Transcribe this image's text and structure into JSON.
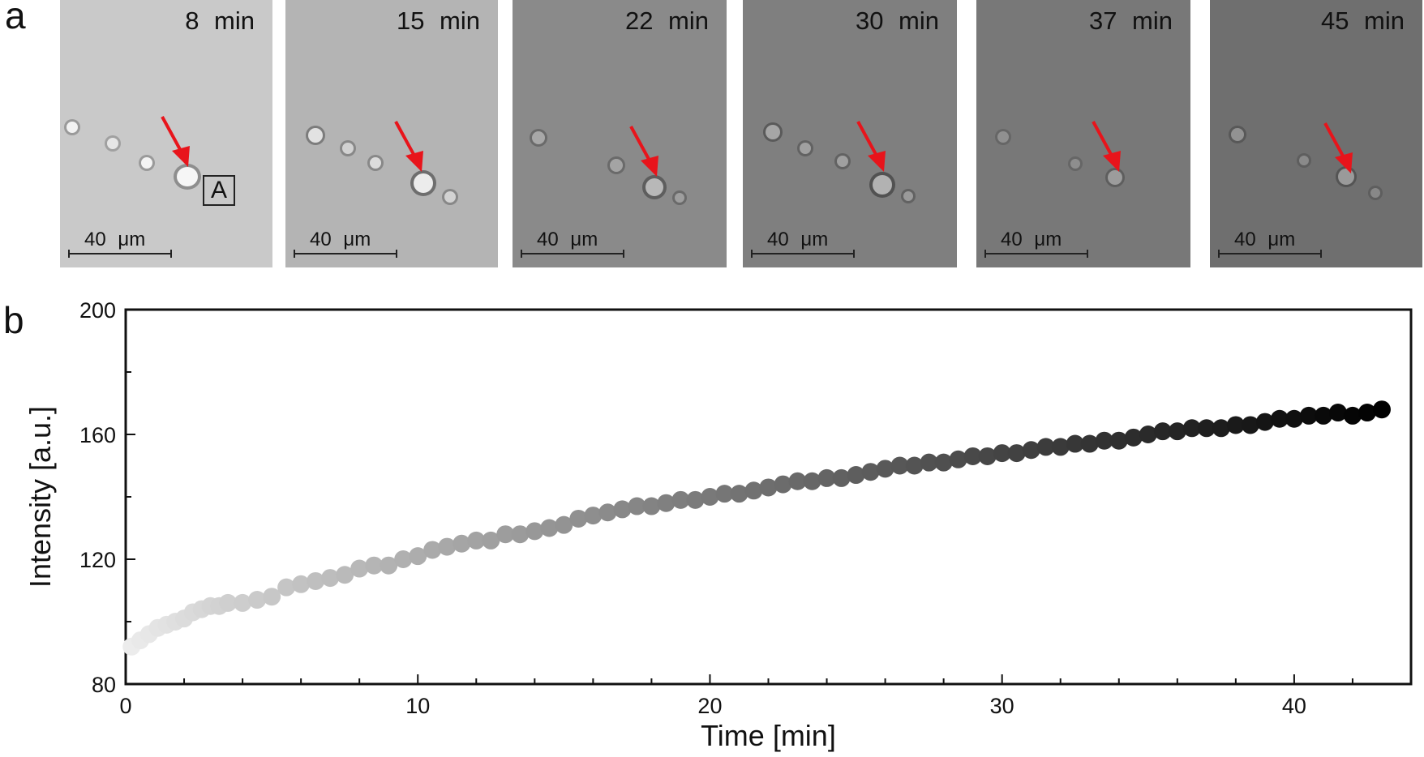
{
  "panel_a": {
    "letter": "a",
    "frames": [
      {
        "time": "8 min",
        "scale": "40 μm",
        "bg": "#c9c9c9",
        "box_label": "A"
      },
      {
        "time": "15 min",
        "scale": "40 μm",
        "bg": "#b4b4b4"
      },
      {
        "time": "22 min",
        "scale": "40 μm",
        "bg": "#8a8a8a"
      },
      {
        "time": "30 min",
        "scale": "40 μm",
        "bg": "#7f7f7f"
      },
      {
        "time": "37 min",
        "scale": "40 μm",
        "bg": "#787878"
      },
      {
        "time": "45 min",
        "scale": "40 μm",
        "bg": "#6f6f6f"
      }
    ],
    "arrow_color": "#e8141b"
  },
  "panel_b": {
    "letter": "b"
  },
  "chart_data": {
    "type": "scatter",
    "title": "",
    "xlabel": "Time [min]",
    "ylabel": "Intensity [a.u.]",
    "xlim": [
      0,
      44
    ],
    "ylim": [
      80,
      200
    ],
    "xticks": [
      0,
      10,
      20,
      30,
      40
    ],
    "yticks": [
      80,
      120,
      160,
      200
    ],
    "marker_color_start": "#ececec",
    "marker_color_end": "#000000",
    "x": [
      0.2,
      0.5,
      0.8,
      1.1,
      1.4,
      1.7,
      2.0,
      2.3,
      2.6,
      2.9,
      3.2,
      3.5,
      4.0,
      4.5,
      5.0,
      5.5,
      6.0,
      6.5,
      7.0,
      7.5,
      8.0,
      8.5,
      9.0,
      9.5,
      10.0,
      10.5,
      11.0,
      11.5,
      12.0,
      12.5,
      13.0,
      13.5,
      14.0,
      14.5,
      15.0,
      15.5,
      16.0,
      16.5,
      17.0,
      17.5,
      18.0,
      18.5,
      19.0,
      19.5,
      20.0,
      20.5,
      21.0,
      21.5,
      22.0,
      22.5,
      23.0,
      23.5,
      24.0,
      24.5,
      25.0,
      25.5,
      26.0,
      26.5,
      27.0,
      27.5,
      28.0,
      28.5,
      29.0,
      29.5,
      30.0,
      30.5,
      31.0,
      31.5,
      32.0,
      32.5,
      33.0,
      33.5,
      34.0,
      34.5,
      35.0,
      35.5,
      36.0,
      36.5,
      37.0,
      37.5,
      38.0,
      38.5,
      39.0,
      39.5,
      40.0,
      40.5,
      41.0,
      41.5,
      42.0,
      42.5,
      43.0
    ],
    "values": [
      92,
      94,
      96,
      98,
      99,
      100,
      101,
      103,
      104,
      105,
      105,
      106,
      106,
      107,
      108,
      111,
      112,
      113,
      114,
      115,
      117,
      118,
      118,
      120,
      121,
      123,
      124,
      125,
      126,
      126,
      128,
      128,
      129,
      130,
      131,
      133,
      134,
      135,
      136,
      137,
      137,
      138,
      139,
      139,
      140,
      141,
      141,
      142,
      143,
      144,
      145,
      145,
      146,
      146,
      147,
      148,
      149,
      150,
      150,
      151,
      151,
      152,
      153,
      153,
      154,
      154,
      155,
      156,
      156,
      157,
      157,
      158,
      158,
      159,
      160,
      161,
      161,
      162,
      162,
      162,
      163,
      163,
      164,
      165,
      165,
      166,
      166,
      167,
      166,
      167,
      168
    ]
  }
}
